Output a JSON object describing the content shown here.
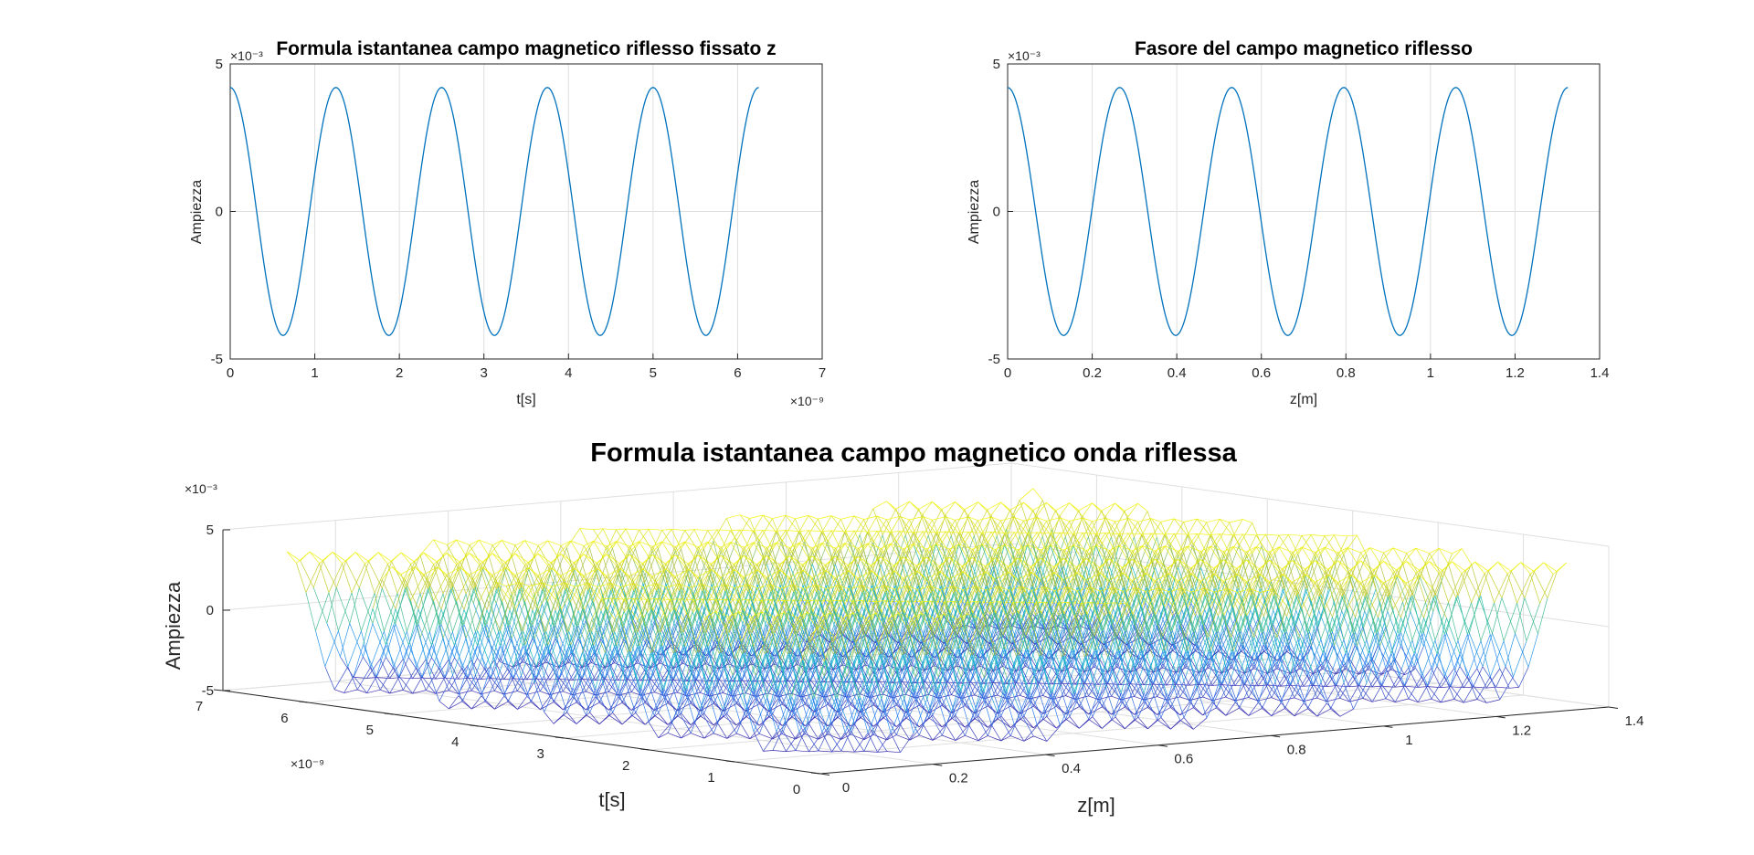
{
  "chart_data": [
    {
      "type": "line",
      "title": "Formula istantanea campo magnetico riflesso fissato z",
      "xlabel": "t[s]",
      "ylabel": "Ampiezza",
      "x_exponent": "×10⁻⁹",
      "y_exponent": "×10⁻³",
      "xlim": [
        0,
        7
      ],
      "ylim": [
        -5,
        5
      ],
      "xticks": [
        "0",
        "1",
        "2",
        "3",
        "4",
        "5",
        "6",
        "7"
      ],
      "yticks": [
        "-5",
        "0",
        "5"
      ],
      "grid": true,
      "series": [
        {
          "amplitude": 4.2,
          "period": 1.25,
          "x_range": [
            0,
            6.25
          ],
          "color": "#0072BD"
        }
      ]
    },
    {
      "type": "line",
      "title": "Fasore del campo magnetico riflesso",
      "xlabel": "z[m]",
      "ylabel": "Ampiezza",
      "y_exponent": "×10⁻³",
      "xlim": [
        0,
        1.4
      ],
      "ylim": [
        -5,
        5
      ],
      "xticks": [
        "0",
        "0.2",
        "0.4",
        "0.6",
        "0.8",
        "1",
        "1.2",
        "1.4"
      ],
      "yticks": [
        "-5",
        "0",
        "5"
      ],
      "grid": true,
      "series": [
        {
          "amplitude": 4.2,
          "period": 0.265,
          "x_range": [
            0,
            1.325
          ],
          "color": "#0072BD"
        }
      ]
    },
    {
      "type": "surface-mesh",
      "title": "Formula istantanea campo magnetico onda riflessa",
      "xlabel": "z[m]",
      "ylabel": "t[s]",
      "zlabel": "Ampiezza",
      "t_exponent": "×10⁻⁹",
      "z_exponent": "×10⁻³",
      "xlim": [
        0,
        1.4
      ],
      "ylim": [
        0,
        7
      ],
      "zlim": [
        -5,
        5
      ],
      "xticks": [
        "0",
        "0.2",
        "0.4",
        "0.6",
        "0.8",
        "1",
        "1.2",
        "1.4"
      ],
      "yticks": [
        "0",
        "1",
        "2",
        "3",
        "4",
        "5",
        "6",
        "7"
      ],
      "zticks": [
        "-5",
        "0",
        "5"
      ],
      "colormap": "parula",
      "grid": true
    }
  ]
}
